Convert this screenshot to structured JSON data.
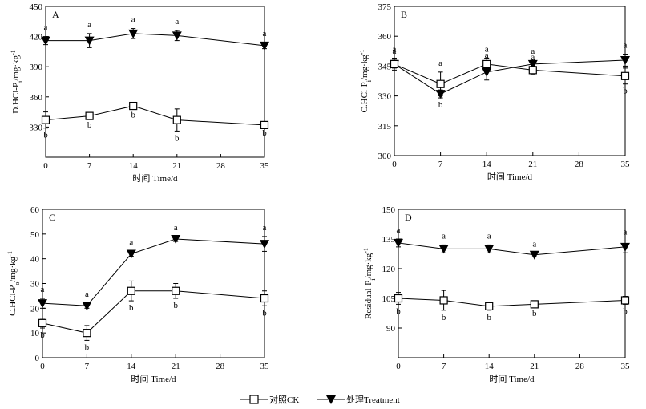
{
  "legend": {
    "ck": "对照CK",
    "treatment": "处理Treatment"
  },
  "chart_data": [
    {
      "panel": "A",
      "type": "line",
      "ylabel": "D.HCl-P<sub>i</sub>/mg·kg<sup>-1</sup>",
      "xlabel": "时间 Time/d",
      "ylim": [
        300,
        450
      ],
      "yticks": [
        330,
        360,
        390,
        420,
        450
      ],
      "xlim": [
        0,
        35
      ],
      "xticks": [
        0,
        7,
        14,
        21,
        28,
        35
      ],
      "x": [
        0,
        7,
        14,
        21,
        35
      ],
      "series": [
        {
          "name": "处理Treatment",
          "marker": "triangle-down",
          "values": [
            416,
            416,
            423,
            421,
            411
          ],
          "errors": [
            4,
            7,
            5,
            5,
            3
          ],
          "labels": [
            "a",
            "a",
            "a",
            "a",
            "a"
          ]
        },
        {
          "name": "对照CK",
          "marker": "square",
          "values": [
            337,
            341,
            351,
            337,
            332
          ],
          "errors": [
            8,
            2,
            2,
            11,
            1
          ],
          "labels": [
            "b",
            "b",
            "b",
            "b",
            "b"
          ]
        }
      ]
    },
    {
      "panel": "B",
      "type": "line",
      "ylabel": "C.HCl-P<sub>i</sub>/mg·kg<sup>-1</sup>",
      "xlabel": "时间 Time/d",
      "ylim": [
        300,
        375
      ],
      "yticks": [
        300,
        315,
        330,
        345,
        360,
        375
      ],
      "xlim": [
        0,
        35
      ],
      "xticks": [
        0,
        7,
        14,
        21,
        28,
        35
      ],
      "x": [
        0,
        7,
        14,
        21,
        35
      ],
      "series": [
        {
          "name": "处理Treatment",
          "marker": "triangle-down",
          "values": [
            346,
            331,
            342,
            346,
            348
          ],
          "errors": [
            2,
            2,
            4,
            2,
            3
          ],
          "labels": [
            "a",
            "b",
            "a",
            "a",
            "a"
          ]
        },
        {
          "name": "对照CK",
          "marker": "square",
          "values": [
            346,
            336,
            346,
            343,
            340
          ],
          "errors": [
            3,
            6,
            3,
            2,
            4
          ],
          "labels": [
            "a",
            "a",
            "a",
            "a",
            "b"
          ]
        }
      ]
    },
    {
      "panel": "C",
      "type": "line",
      "ylabel": "C.HCl-P<sub>o</sub>/mg·kg<sup>-1</sup>",
      "xlabel": "时间 Time/d",
      "ylim": [
        0,
        60
      ],
      "yticks": [
        0,
        10,
        20,
        30,
        40,
        50,
        60
      ],
      "xlim": [
        0,
        35
      ],
      "xticks": [
        0,
        7,
        14,
        21,
        28,
        35
      ],
      "x": [
        0,
        7,
        14,
        21,
        35
      ],
      "series": [
        {
          "name": "处理Treatment",
          "marker": "triangle-down",
          "values": [
            22,
            21,
            42,
            48,
            46
          ],
          "errors": [
            2,
            1,
            1,
            1,
            3
          ],
          "labels": [
            "a",
            "a",
            "a",
            "a",
            "a"
          ]
        },
        {
          "name": "对照CK",
          "marker": "square",
          "values": [
            14,
            10,
            27,
            27,
            24
          ],
          "errors": [
            2,
            3,
            4,
            3,
            3
          ],
          "labels": [
            "b",
            "b",
            "b",
            "b",
            "b"
          ]
        }
      ]
    },
    {
      "panel": "D",
      "type": "line",
      "ylabel": "Residual-P<sub>i</sub>/mg·kg<sup>-1</sup>",
      "xlabel": "时间 Time/d",
      "ylim": [
        75,
        150
      ],
      "yticks": [
        90,
        105,
        120,
        135,
        150
      ],
      "xlim": [
        0,
        35
      ],
      "xticks": [
        0,
        7,
        14,
        21,
        28,
        35
      ],
      "x": [
        0,
        7,
        14,
        21,
        35
      ],
      "series": [
        {
          "name": "处理Treatment",
          "marker": "triangle-down",
          "values": [
            133,
            130,
            130,
            127,
            131
          ],
          "errors": [
            2,
            2,
            2,
            1,
            3
          ],
          "labels": [
            "a",
            "a",
            "a",
            "a",
            "a"
          ]
        },
        {
          "name": "对照CK",
          "marker": "square",
          "values": [
            105,
            104,
            101,
            102,
            104
          ],
          "errors": [
            3,
            5,
            2,
            1,
            2
          ],
          "labels": [
            "b",
            "b",
            "b",
            "b",
            "b"
          ]
        }
      ]
    }
  ]
}
